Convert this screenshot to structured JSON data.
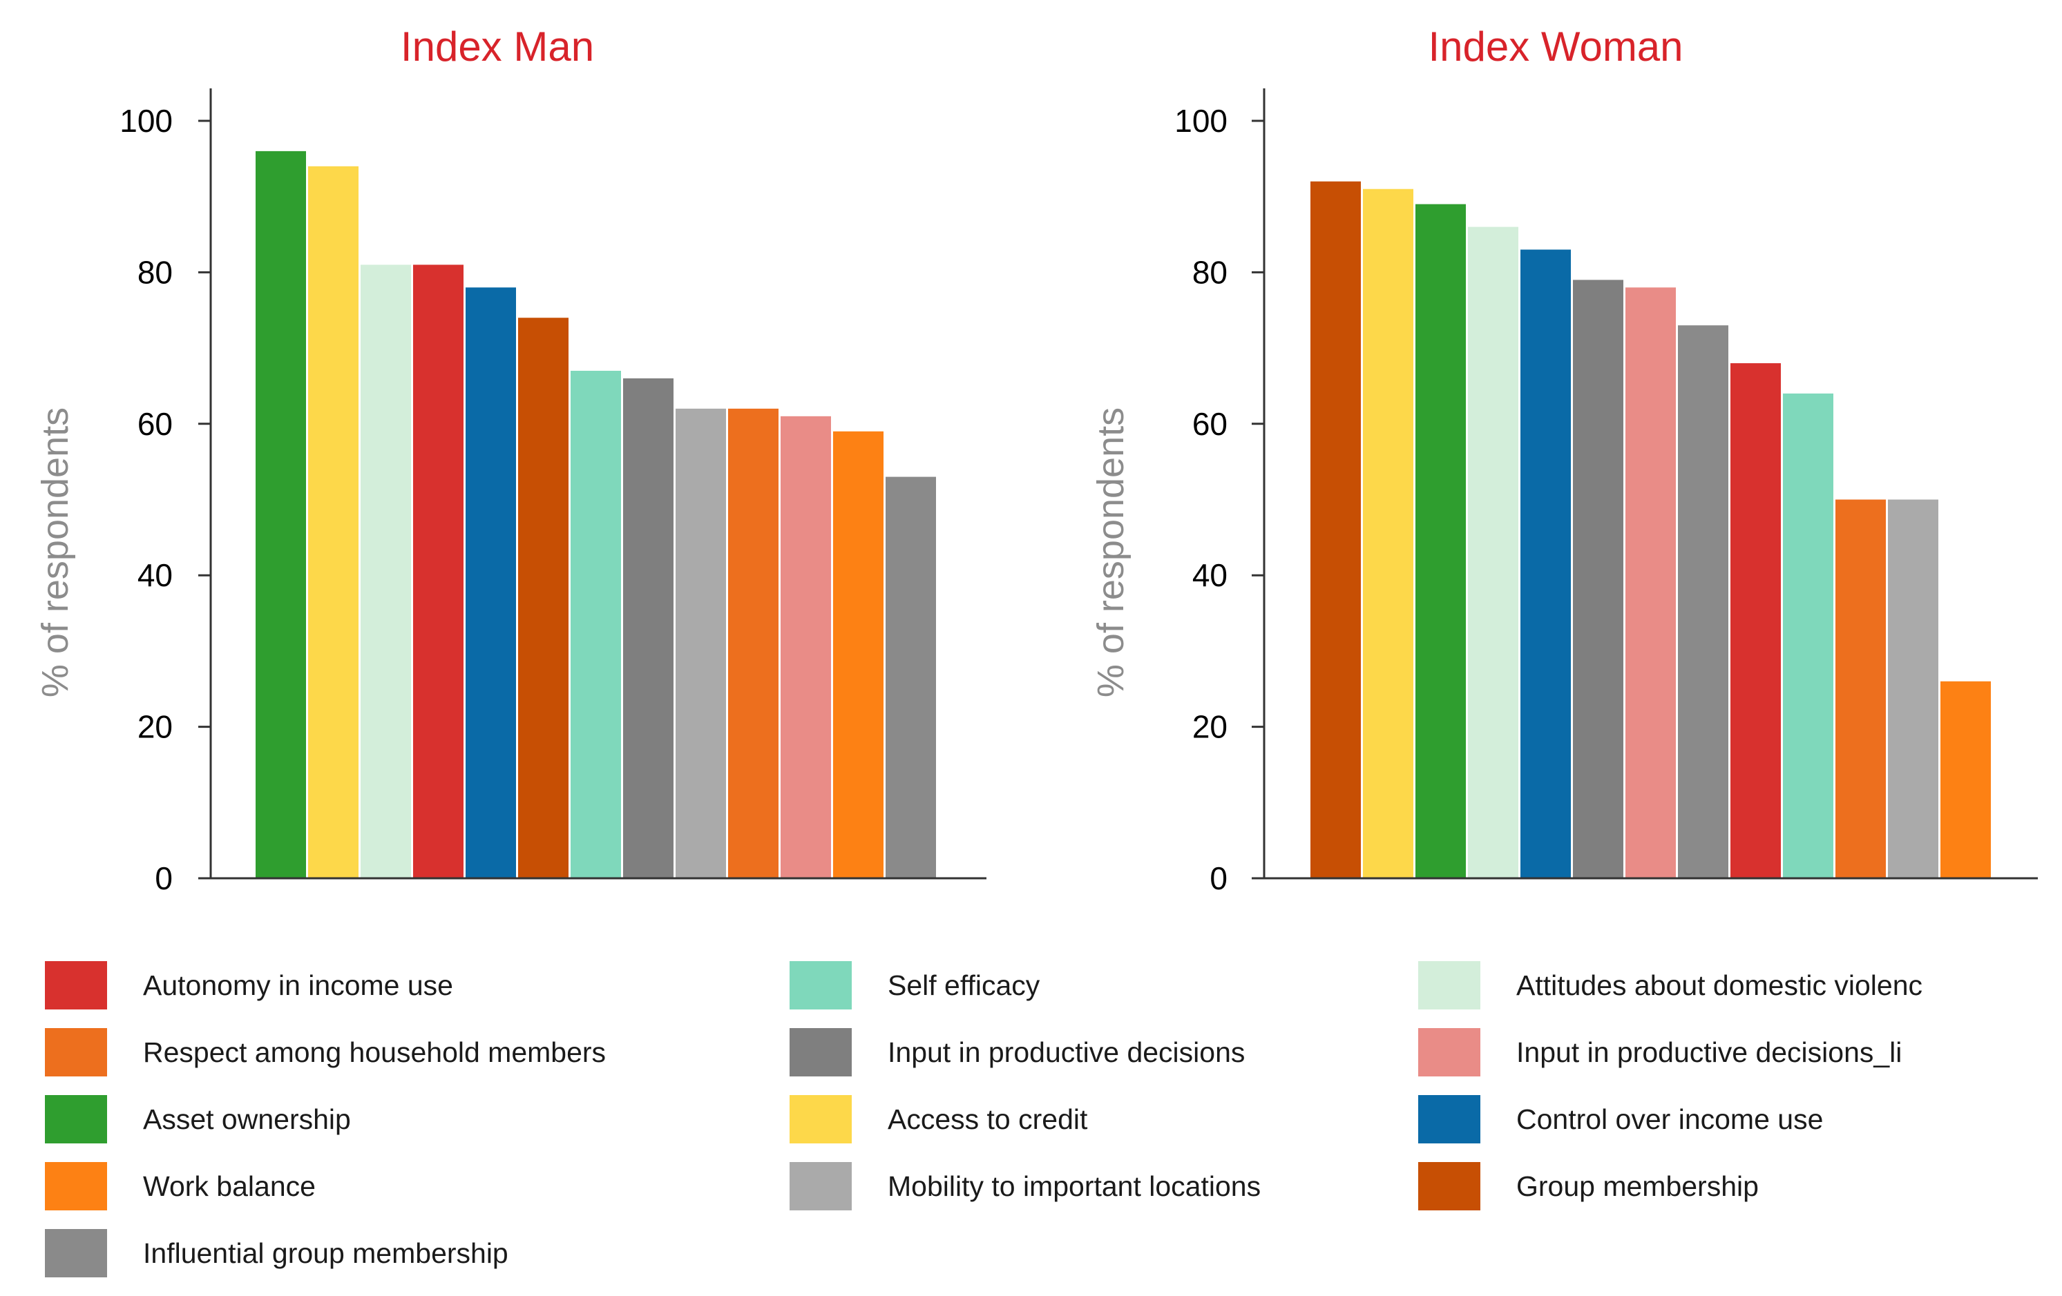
{
  "chart_data": [
    {
      "type": "bar",
      "title": "Index Man",
      "ylabel": "% of respondents",
      "xlabel": "",
      "ylim": [
        0,
        100
      ],
      "yticks": [
        0,
        20,
        40,
        60,
        80,
        100
      ],
      "bars": [
        {
          "category": "Asset ownership",
          "value": 96
        },
        {
          "category": "Access to credit",
          "value": 94
        },
        {
          "category": "Attitudes about domestic violenc",
          "value": 81
        },
        {
          "category": "Autonomy in income use",
          "value": 81
        },
        {
          "category": "Control over income use",
          "value": 78
        },
        {
          "category": "Group membership",
          "value": 74
        },
        {
          "category": "Self efficacy",
          "value": 67
        },
        {
          "category": "Input in productive decisions",
          "value": 66
        },
        {
          "category": "Mobility to important locations",
          "value": 62
        },
        {
          "category": "Respect among household members",
          "value": 62
        },
        {
          "category": "Input in productive decisions_li",
          "value": 61
        },
        {
          "category": "Work balance",
          "value": 59
        },
        {
          "category": "Influential group membership",
          "value": 53
        }
      ]
    },
    {
      "type": "bar",
      "title": "Index Woman",
      "ylabel": "% of respondents",
      "xlabel": "",
      "ylim": [
        0,
        100
      ],
      "yticks": [
        0,
        20,
        40,
        60,
        80,
        100
      ],
      "bars": [
        {
          "category": "Group membership",
          "value": 92
        },
        {
          "category": "Access to credit",
          "value": 91
        },
        {
          "category": "Asset ownership",
          "value": 89
        },
        {
          "category": "Attitudes about domestic violenc",
          "value": 86
        },
        {
          "category": "Control over income use",
          "value": 83
        },
        {
          "category": "Input in productive decisions",
          "value": 79
        },
        {
          "category": "Input in productive decisions_li",
          "value": 78
        },
        {
          "category": "Influential group membership",
          "value": 73
        },
        {
          "category": "Autonomy in income use",
          "value": 68
        },
        {
          "category": "Self efficacy",
          "value": 64
        },
        {
          "category": "Respect among household members",
          "value": 50
        },
        {
          "category": "Mobility to important locations",
          "value": 50
        },
        {
          "category": "Work balance",
          "value": 26
        }
      ]
    }
  ],
  "legend": [
    {
      "label": "Autonomy in income use",
      "color": "#d8312e"
    },
    {
      "label": "Self efficacy",
      "color": "#7fd8bb"
    },
    {
      "label": "Attitudes about domestic violenc",
      "color": "#d3eeda"
    },
    {
      "label": "Respect among household members",
      "color": "#ed6f1e"
    },
    {
      "label": "Input in productive decisions",
      "color": "#7f7f7f"
    },
    {
      "label": "Input in productive decisions_li",
      "color": "#e98c87"
    },
    {
      "label": "Asset ownership",
      "color": "#2f9e2f"
    },
    {
      "label": "Access to credit",
      "color": "#fdd84a"
    },
    {
      "label": "Control over income use",
      "color": "#0a6aa7"
    },
    {
      "label": "Work balance",
      "color": "#fd8114"
    },
    {
      "label": "Mobility to important locations",
      "color": "#aaaaaa"
    },
    {
      "label": "Group membership",
      "color": "#c74f04"
    },
    {
      "label": "Influential group membership",
      "color": "#8a8a8a"
    }
  ]
}
